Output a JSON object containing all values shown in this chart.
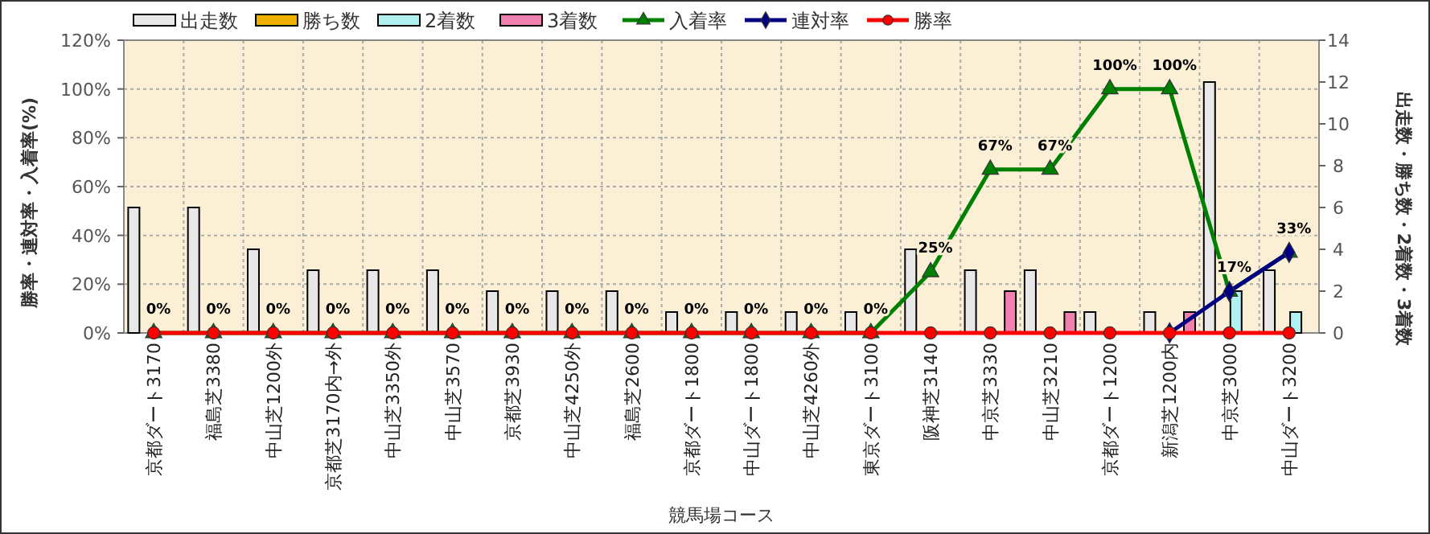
{
  "chart_data": {
    "type": "bar",
    "xlabel": "競馬場コース",
    "ylabel": "勝率・連対率・入着率(%)",
    "y2label": "出走数・勝ち数・2着数・3着数",
    "categories": [
      "京都ダート3170",
      "福島芝3380",
      "中山芝1200外",
      "京都芝3170内→外",
      "中山芝3350外",
      "中山芝3570",
      "京都芝3930",
      "中山芝4250外",
      "福島芝2600",
      "京都ダート1800",
      "中山ダート1800",
      "中山芝4260外",
      "東京ダート3100",
      "阪神芝3140",
      "中京芝3330",
      "中山芝3210",
      "京都ダート1200",
      "新潟芝1200内",
      "中京芝3000",
      "中山ダート3200"
    ],
    "series": [
      {
        "name": "出走数",
        "axis": "y2",
        "color": "#e8e8e8",
        "values": [
          6,
          6,
          4,
          3,
          3,
          3,
          2,
          2,
          2,
          1,
          1,
          1,
          1,
          4,
          3,
          3,
          1,
          1,
          12,
          3
        ]
      },
      {
        "name": "勝ち数",
        "axis": "y2",
        "color": "#f0b000",
        "values": [
          0,
          0,
          0,
          0,
          0,
          0,
          0,
          0,
          0,
          0,
          0,
          0,
          0,
          0,
          0,
          0,
          0,
          0,
          0,
          0
        ]
      },
      {
        "name": "2着数",
        "axis": "y2",
        "color": "#b0f0f0",
        "values": [
          0,
          0,
          0,
          0,
          0,
          0,
          0,
          0,
          0,
          0,
          0,
          0,
          0,
          0,
          0,
          0,
          0,
          0,
          2,
          1
        ]
      },
      {
        "name": "3着数",
        "axis": "y2",
        "color": "#f080b0",
        "values": [
          0,
          0,
          0,
          0,
          0,
          0,
          0,
          0,
          0,
          0,
          0,
          0,
          0,
          0,
          2,
          1,
          0,
          1,
          0,
          0
        ]
      },
      {
        "name": "入着率",
        "type": "line",
        "color": "#008000",
        "marker": "triangle",
        "values": [
          0,
          0,
          0,
          0,
          0,
          0,
          0,
          0,
          0,
          0,
          0,
          0,
          0,
          25,
          67,
          67,
          100,
          100,
          17,
          33
        ],
        "value_labels": [
          "0%",
          "0%",
          "0%",
          "0%",
          "0%",
          "0%",
          "0%",
          "0%",
          "0%",
          "0%",
          "0%",
          "0%",
          "0%",
          "25%",
          "67%",
          "67%",
          "100%",
          "100%",
          "17%",
          "33%"
        ]
      },
      {
        "name": "連対率",
        "type": "line",
        "color": "#000080",
        "marker": "diamond",
        "values": [
          null,
          null,
          null,
          null,
          null,
          null,
          null,
          null,
          null,
          null,
          null,
          null,
          null,
          null,
          null,
          null,
          null,
          0,
          17,
          33
        ]
      },
      {
        "name": "勝率",
        "type": "line",
        "color": "#ff0000",
        "marker": "circle",
        "values": [
          0,
          0,
          0,
          0,
          0,
          0,
          0,
          0,
          0,
          0,
          0,
          0,
          0,
          0,
          0,
          0,
          0,
          0,
          0,
          0
        ]
      }
    ],
    "ylim": [
      0,
      120
    ],
    "yticks": [
      {
        "value": 0,
        "label": "0%"
      },
      {
        "value": 20,
        "label": "20%"
      },
      {
        "value": 40,
        "label": "40%"
      },
      {
        "value": 60,
        "label": "60%"
      },
      {
        "value": 80,
        "label": "80%"
      },
      {
        "value": 100,
        "label": "100%"
      },
      {
        "value": 120,
        "label": "120%"
      }
    ],
    "y2lim": [
      0,
      14
    ],
    "y2ticks": [
      0,
      2,
      4,
      6,
      8,
      10,
      12,
      14
    ],
    "grid": true,
    "legend": "top"
  }
}
